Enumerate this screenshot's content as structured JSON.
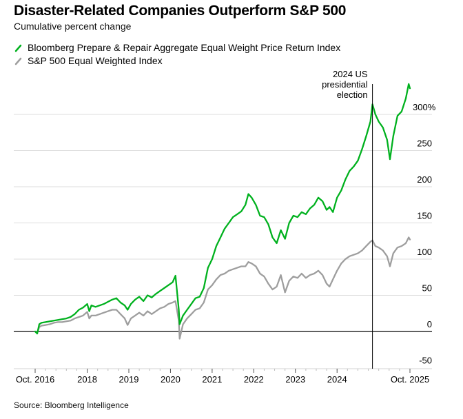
{
  "header": {
    "title": "Disaster-Related Companies Outperform S&P 500",
    "subtitle": "Cumulative percent change"
  },
  "legend": [
    {
      "label": "Bloomberg Prepare & Repair Aggregate Equal Weight Price Return Index",
      "color": "#00b11e"
    },
    {
      "label": "S&P 500 Equal Weighted Index",
      "color": "#9e9e9e"
    }
  ],
  "footer": {
    "source": "Source: Bloomberg Intelligence"
  },
  "chart_data": {
    "type": "line",
    "title": "Disaster-Related Companies Outperform S&P 500",
    "subtitle": "Cumulative percent change",
    "xlabel": "",
    "ylabel": "",
    "x_range": [
      2016.75,
      2025.75
    ],
    "ylim": [
      -50,
      300
    ],
    "y_ticks": [
      -50,
      0,
      50,
      100,
      150,
      200,
      250,
      300
    ],
    "y_tick_labels": [
      "-50",
      "0",
      "50",
      "100",
      "150",
      "200",
      "250",
      "300%"
    ],
    "x_ticks": [
      2016.75,
      2018,
      2019,
      2020,
      2021,
      2022,
      2023,
      2024,
      2025.75
    ],
    "x_tick_labels": [
      "Oct. 2016",
      "2018",
      "2019",
      "2020",
      "2021",
      "2022",
      "2023",
      "2024",
      "Oct. 2025"
    ],
    "grid": true,
    "legend_position": "top-left",
    "annotations": [
      {
        "x": 2024.85,
        "text_lines": [
          "2024 US",
          "presidential",
          "election"
        ],
        "type": "vertical-line"
      }
    ],
    "x": [
      2016.75,
      2016.8,
      2016.85,
      2016.9,
      2017.0,
      2017.1,
      2017.2,
      2017.3,
      2017.4,
      2017.5,
      2017.6,
      2017.7,
      2017.8,
      2017.9,
      2018.0,
      2018.05,
      2018.1,
      2018.2,
      2018.3,
      2018.4,
      2018.5,
      2018.6,
      2018.7,
      2018.8,
      2018.9,
      2018.97,
      2019.05,
      2019.15,
      2019.25,
      2019.35,
      2019.45,
      2019.55,
      2019.65,
      2019.75,
      2019.85,
      2019.95,
      2020.05,
      2020.12,
      2020.2,
      2020.22,
      2020.3,
      2020.4,
      2020.5,
      2020.6,
      2020.7,
      2020.8,
      2020.9,
      2021.0,
      2021.1,
      2021.2,
      2021.3,
      2021.4,
      2021.5,
      2021.6,
      2021.7,
      2021.8,
      2021.87,
      2021.95,
      2022.05,
      2022.15,
      2022.25,
      2022.35,
      2022.45,
      2022.55,
      2022.65,
      2022.75,
      2022.85,
      2022.95,
      2023.05,
      2023.15,
      2023.25,
      2023.35,
      2023.45,
      2023.55,
      2023.65,
      2023.75,
      2023.82,
      2023.9,
      2024.0,
      2024.1,
      2024.2,
      2024.3,
      2024.4,
      2024.5,
      2024.6,
      2024.7,
      2024.8,
      2024.85,
      2024.92,
      2025.0,
      2025.1,
      2025.2,
      2025.27,
      2025.35,
      2025.45,
      2025.55,
      2025.65,
      2025.72,
      2025.75
    ],
    "series": [
      {
        "name": "Bloomberg Prepare & Repair Aggregate Equal Weight Price Return Index",
        "color": "#00b11e",
        "values": [
          0,
          -3,
          10,
          12,
          13,
          14,
          15,
          16,
          17,
          18,
          20,
          24,
          30,
          33,
          38,
          28,
          36,
          34,
          36,
          38,
          41,
          44,
          46,
          40,
          36,
          30,
          38,
          44,
          48,
          42,
          50,
          47,
          52,
          56,
          60,
          64,
          68,
          77,
          30,
          10,
          22,
          30,
          38,
          46,
          48,
          60,
          88,
          100,
          118,
          130,
          142,
          150,
          158,
          162,
          166,
          175,
          190,
          185,
          175,
          160,
          158,
          148,
          130,
          122,
          140,
          128,
          150,
          160,
          158,
          165,
          162,
          170,
          175,
          185,
          180,
          168,
          172,
          165,
          185,
          195,
          210,
          222,
          228,
          236,
          252,
          270,
          290,
          314,
          300,
          290,
          282,
          265,
          238,
          270,
          298,
          304,
          322,
          342,
          336
        ]
      },
      {
        "name": "S&P 500 Equal Weighted Index",
        "color": "#9e9e9e",
        "values": [
          0,
          -2,
          6,
          8,
          9,
          10,
          12,
          13,
          13,
          14,
          15,
          18,
          20,
          22,
          27,
          18,
          22,
          22,
          24,
          26,
          28,
          30,
          30,
          24,
          18,
          9,
          18,
          22,
          26,
          22,
          28,
          24,
          28,
          32,
          34,
          38,
          40,
          42,
          15,
          -10,
          10,
          18,
          24,
          30,
          32,
          40,
          58,
          64,
          72,
          78,
          80,
          84,
          86,
          88,
          90,
          90,
          96,
          94,
          90,
          80,
          76,
          66,
          58,
          62,
          78,
          54,
          70,
          76,
          74,
          80,
          74,
          78,
          80,
          84,
          78,
          66,
          62,
          72,
          84,
          94,
          100,
          104,
          106,
          108,
          112,
          118,
          124,
          126,
          118,
          116,
          112,
          104,
          90,
          108,
          116,
          118,
          122,
          130,
          127
        ]
      }
    ]
  }
}
